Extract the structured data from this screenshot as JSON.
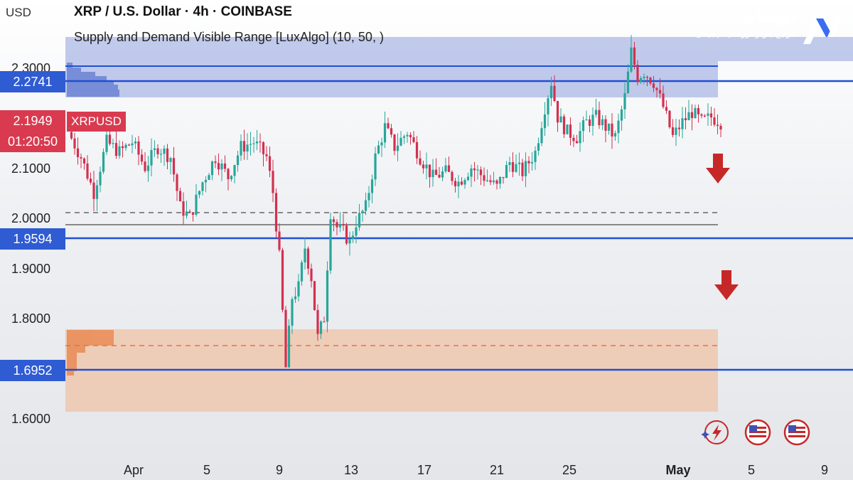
{
  "header": {
    "currency_label": "USD",
    "title": "XRP / U.S. Dollar · 4h · COINBASE",
    "indicator": "Supply and Demand Visible Range [LuxAlgo] (10, 50, )"
  },
  "brand": {
    "name": "نوسان",
    "tagline": "مرجع بازار ارزهای دیجیتال",
    "logo_icon": "nosan-logo-icon"
  },
  "price_badges": {
    "level_top": "2.2741",
    "current_price": "2.1949",
    "symbol": "XRPUSD",
    "countdown": "01:20:50",
    "level_mid": "1.9594",
    "level_low": "1.6952"
  },
  "colors": {
    "bull": "#26a69a",
    "bear": "#d32f4f",
    "supply_zone": "#7b8fd6",
    "demand_zone": "#f0a070",
    "level_line": "#1f4fd1",
    "arrow": "#c62828"
  },
  "bottom_icons": [
    "lightning-icon",
    "us-flag-icon",
    "us-flag-icon"
  ],
  "chart_data": {
    "type": "candlestick",
    "title": "XRP / U.S. Dollar · 4h · COINBASE",
    "ylabel": "USD",
    "ylim": [
      1.58,
      2.36
    ],
    "y_ticks": [
      "2.3000",
      "2.1000",
      "2.0000",
      "1.9000",
      "1.8000",
      "1.6000"
    ],
    "x_ticks": [
      "Apr",
      "5",
      "9",
      "13",
      "17",
      "21",
      "25",
      "May",
      "5",
      "9"
    ],
    "anchors": [
      {
        "t": 0,
        "p": 2.17
      },
      {
        "t": 4,
        "p": 2.12
      },
      {
        "t": 8,
        "p": 2.05
      },
      {
        "t": 12,
        "p": 2.15
      },
      {
        "t": 16,
        "p": 2.13
      },
      {
        "t": 20,
        "p": 2.15
      },
      {
        "t": 24,
        "p": 2.1
      },
      {
        "t": 28,
        "p": 2.14
      },
      {
        "t": 32,
        "p": 2.12
      },
      {
        "t": 35,
        "p": 2.02
      },
      {
        "t": 38,
        "p": 2.0
      },
      {
        "t": 42,
        "p": 2.07
      },
      {
        "t": 46,
        "p": 2.12
      },
      {
        "t": 50,
        "p": 2.08
      },
      {
        "t": 54,
        "p": 2.14
      },
      {
        "t": 58,
        "p": 2.15
      },
      {
        "t": 62,
        "p": 2.12
      },
      {
        "t": 64,
        "p": 2.05
      },
      {
        "t": 66,
        "p": 1.92
      },
      {
        "t": 68,
        "p": 1.7
      },
      {
        "t": 70,
        "p": 1.84
      },
      {
        "t": 72,
        "p": 1.86
      },
      {
        "t": 74,
        "p": 1.94
      },
      {
        "t": 76,
        "p": 1.88
      },
      {
        "t": 78,
        "p": 1.76
      },
      {
        "t": 80,
        "p": 1.8
      },
      {
        "t": 82,
        "p": 2.01
      },
      {
        "t": 84,
        "p": 1.98
      },
      {
        "t": 86,
        "p": 1.97
      },
      {
        "t": 88,
        "p": 1.95
      },
      {
        "t": 90,
        "p": 1.99
      },
      {
        "t": 93,
        "p": 2.02
      },
      {
        "t": 96,
        "p": 2.12
      },
      {
        "t": 99,
        "p": 2.18
      },
      {
        "t": 102,
        "p": 2.14
      },
      {
        "t": 106,
        "p": 2.17
      },
      {
        "t": 110,
        "p": 2.12
      },
      {
        "t": 114,
        "p": 2.08
      },
      {
        "t": 118,
        "p": 2.09
      },
      {
        "t": 122,
        "p": 2.07
      },
      {
        "t": 126,
        "p": 2.1
      },
      {
        "t": 130,
        "p": 2.08
      },
      {
        "t": 134,
        "p": 2.06
      },
      {
        "t": 138,
        "p": 2.11
      },
      {
        "t": 142,
        "p": 2.09
      },
      {
        "t": 146,
        "p": 2.13
      },
      {
        "t": 149,
        "p": 2.22
      },
      {
        "t": 151,
        "p": 2.27
      },
      {
        "t": 153,
        "p": 2.2
      },
      {
        "t": 156,
        "p": 2.17
      },
      {
        "t": 159,
        "p": 2.16
      },
      {
        "t": 162,
        "p": 2.19
      },
      {
        "t": 165,
        "p": 2.2
      },
      {
        "t": 168,
        "p": 2.18
      },
      {
        "t": 171,
        "p": 2.16
      },
      {
        "t": 174,
        "p": 2.24
      },
      {
        "t": 176,
        "p": 2.33
      },
      {
        "t": 178,
        "p": 2.28
      },
      {
        "t": 180,
        "p": 2.29
      },
      {
        "t": 183,
        "p": 2.27
      },
      {
        "t": 186,
        "p": 2.22
      },
      {
        "t": 189,
        "p": 2.16
      },
      {
        "t": 192,
        "p": 2.19
      },
      {
        "t": 195,
        "p": 2.21
      },
      {
        "t": 198,
        "p": 2.19
      },
      {
        "t": 201,
        "p": 2.2
      },
      {
        "t": 204,
        "p": 2.19
      }
    ],
    "levels": [
      2.2741,
      1.9594,
      1.6952
    ],
    "dashed_levels": [
      2.013,
      1.748
    ],
    "gray_level": 1.995,
    "supply_zone": [
      2.255,
      2.33
    ],
    "demand_zone": [
      1.61,
      1.78
    ]
  }
}
